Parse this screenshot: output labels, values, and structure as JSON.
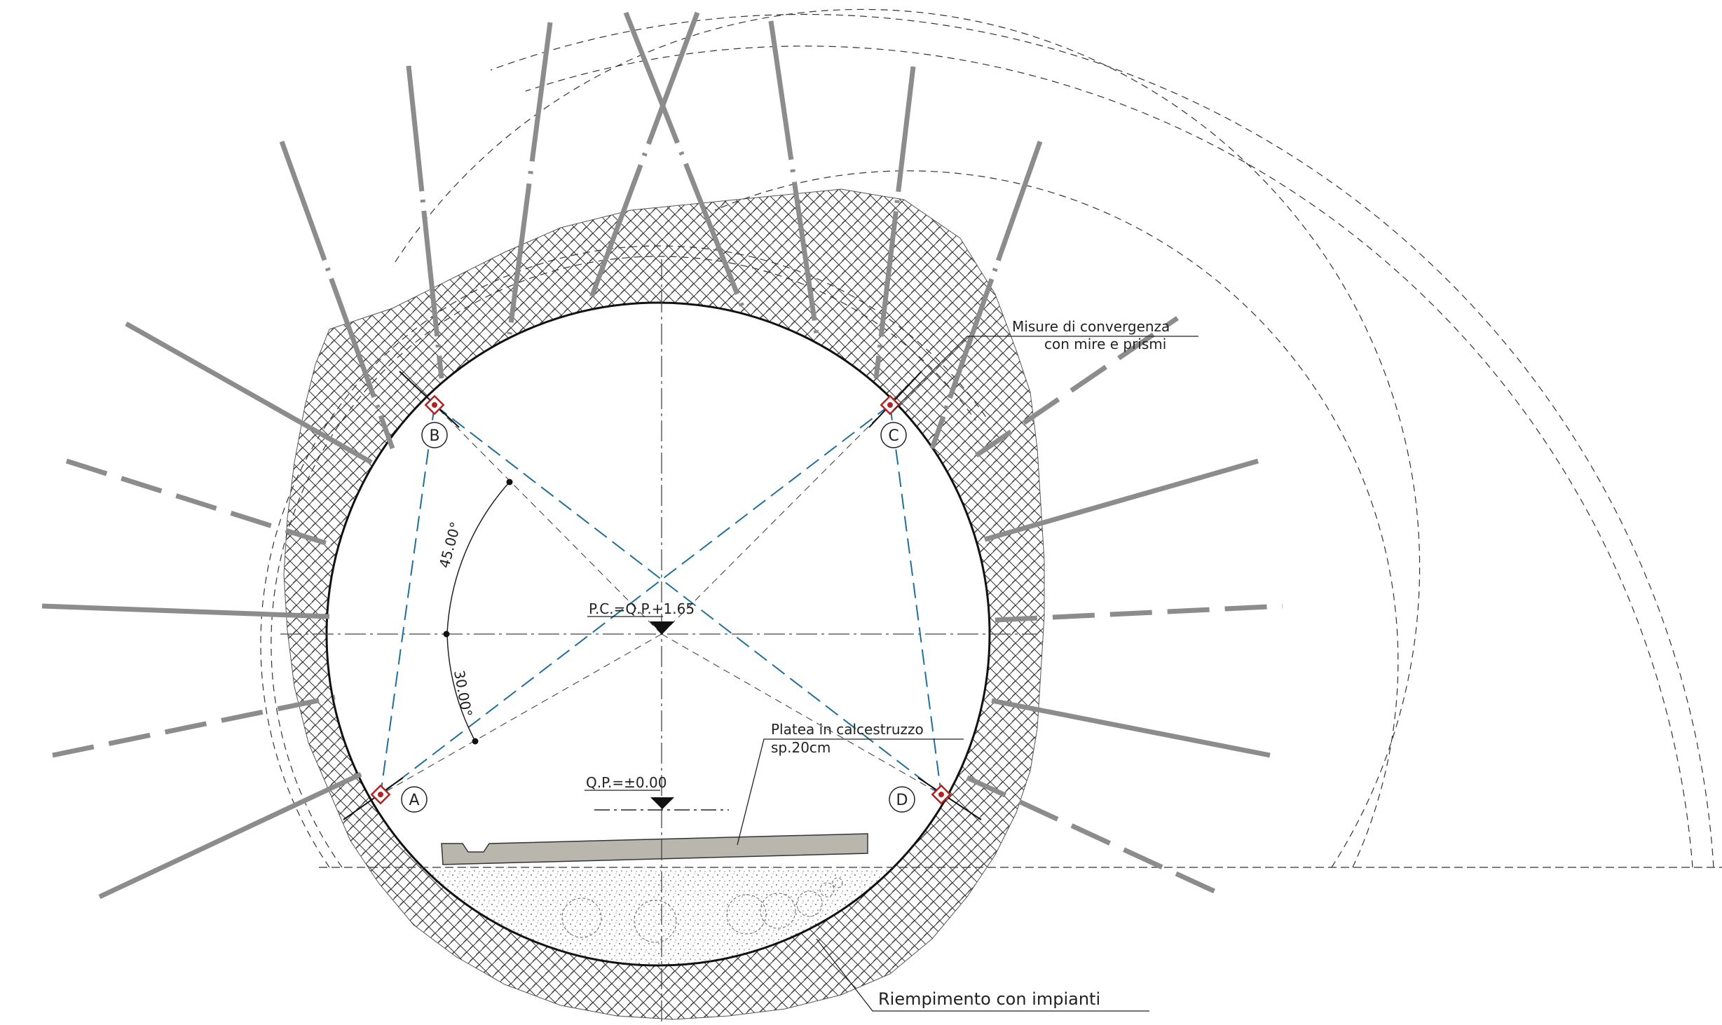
{
  "labels": {
    "convergence_line1": "Misure di convergenza",
    "convergence_line2": "con mire e prismi",
    "slab_line1": "Platea in calcestruzzo",
    "slab_line2": "sp.20cm",
    "fill": "Riempimento con impianti",
    "pc": "P.C.=Q.P.+1.65",
    "qp": "Q.P.=±0.00",
    "angle_45": "45.00°",
    "angle_30": "30.00°"
  },
  "points": {
    "a": "A",
    "b": "B",
    "c": "C",
    "d": "D"
  },
  "colors": {
    "line": "#111111",
    "bolt": "#8c8c8c",
    "measure": "#1f6f9a",
    "prism": "#b22222",
    "slab": "#b9b6ad"
  }
}
